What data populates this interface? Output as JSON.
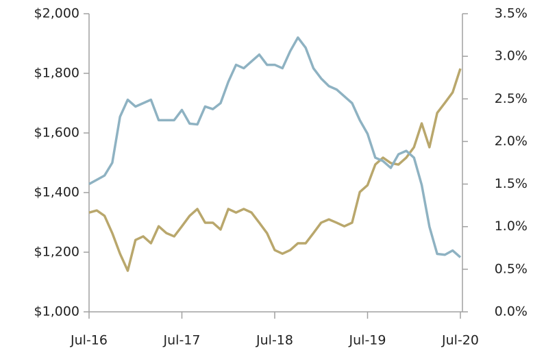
{
  "chart_data": {
    "type": "line",
    "x": [
      "2016-07",
      "2016-08",
      "2016-09",
      "2016-10",
      "2016-11",
      "2016-12",
      "2017-01",
      "2017-02",
      "2017-03",
      "2017-04",
      "2017-05",
      "2017-06",
      "2017-07",
      "2017-08",
      "2017-09",
      "2017-10",
      "2017-11",
      "2017-12",
      "2018-01",
      "2018-02",
      "2018-03",
      "2018-04",
      "2018-05",
      "2018-06",
      "2018-07",
      "2018-08",
      "2018-09",
      "2018-10",
      "2018-11",
      "2018-12",
      "2019-01",
      "2019-02",
      "2019-03",
      "2019-04",
      "2019-05",
      "2019-06",
      "2019-07",
      "2019-08",
      "2019-09",
      "2019-10",
      "2019-11",
      "2019-12",
      "2020-01",
      "2020-02",
      "2020-03",
      "2020-04",
      "2020-05",
      "2020-06",
      "2020-07"
    ],
    "xlim": [
      "2016-07",
      "2020-07"
    ],
    "xticks": [
      {
        "value": "2016-07",
        "label": "Jul-16"
      },
      {
        "value": "2017-07",
        "label": "Jul-17"
      },
      {
        "value": "2018-07",
        "label": "Jul-18"
      },
      {
        "value": "2019-07",
        "label": "Jul-19"
      },
      {
        "value": "2020-07",
        "label": "Jul-20"
      }
    ],
    "ylim": [
      1000,
      2000
    ],
    "yticks": [
      {
        "value": 1000,
        "label": "$1,000"
      },
      {
        "value": 1200,
        "label": "$1,200"
      },
      {
        "value": 1400,
        "label": "$1,400"
      },
      {
        "value": 1600,
        "label": "$1,600"
      },
      {
        "value": 1800,
        "label": "$1,800"
      },
      {
        "value": 2000,
        "label": "$2,000"
      }
    ],
    "y2lim": [
      0,
      3.5
    ],
    "y2ticks": [
      {
        "value": 0,
        "label": "0.0%"
      },
      {
        "value": 0.5,
        "label": "0.5%"
      },
      {
        "value": 1,
        "label": "1.0%"
      },
      {
        "value": 1.5,
        "label": "1.5%"
      },
      {
        "value": 2,
        "label": "2.0%"
      },
      {
        "value": 2.5,
        "label": "2.5%"
      },
      {
        "value": 3,
        "label": "3.0%"
      },
      {
        "value": 3.5,
        "label": "3.5%"
      }
    ],
    "series": [
      {
        "color": "#b9a76c",
        "values": [
          1333,
          1340,
          1322,
          1264,
          1195,
          1138,
          1241,
          1253,
          1230,
          1287,
          1264,
          1253,
          1287,
          1322,
          1345,
          1299,
          1299,
          1276,
          1345,
          1333,
          1345,
          1333,
          1299,
          1264,
          1207,
          1195,
          1207,
          1230,
          1230,
          1264,
          1299,
          1310,
          1299,
          1287,
          1299,
          1402,
          1425,
          1494,
          1517,
          1499,
          1494,
          1517,
          1552,
          1632,
          1552,
          1667,
          1701,
          1736,
          1816
        ]
      },
      {
        "color": "#8eb2c2",
        "axis": "y2",
        "values": [
          1.5,
          1.55,
          1.6,
          1.75,
          2.29,
          2.49,
          2.41,
          2.45,
          2.49,
          2.25,
          2.25,
          2.25,
          2.37,
          2.21,
          2.2,
          2.41,
          2.38,
          2.45,
          2.7,
          2.9,
          2.86,
          2.94,
          3.02,
          2.9,
          2.9,
          2.86,
          3.06,
          3.22,
          3.1,
          2.86,
          2.74,
          2.65,
          2.61,
          2.53,
          2.45,
          2.25,
          2.09,
          1.81,
          1.77,
          1.69,
          1.85,
          1.89,
          1.81,
          1.49,
          1.0,
          0.68,
          0.67,
          0.72,
          0.64
        ]
      }
    ]
  }
}
